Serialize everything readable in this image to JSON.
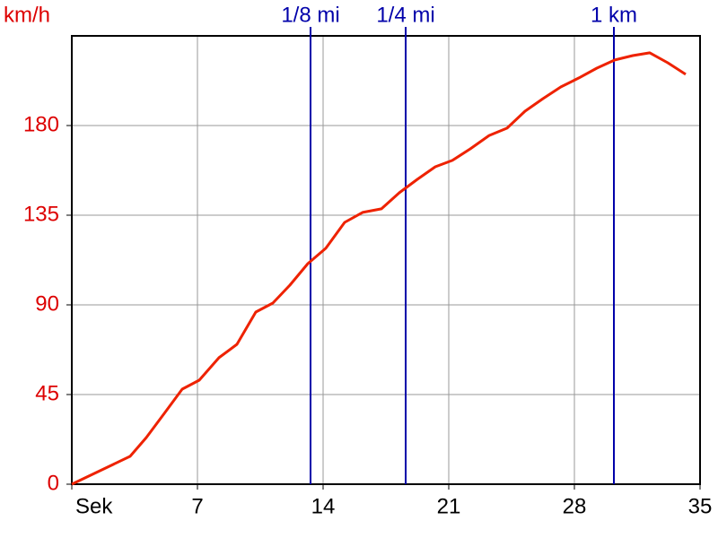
{
  "chart_data": {
    "type": "line",
    "y_label": "km/h",
    "x": [
      0,
      3.25,
      4.15,
      5.15,
      6.15,
      7.1,
      8.2,
      9.2,
      10.25,
      11.2,
      12.15,
      13.15,
      14.15,
      15.2,
      16.2,
      17.25,
      18.25,
      19.25,
      20.25,
      21.2,
      22.2,
      23.25,
      24.25,
      25.25,
      26.25,
      27.25,
      28.25,
      29.25,
      30.25,
      31.25,
      32.2,
      33.2,
      34.2
    ],
    "series": [
      {
        "color": "#ee2200",
        "values": [
          0,
          14,
          23.4,
          35.5,
          47.7,
          52.2,
          63.5,
          70.2,
          86.4,
          90.9,
          99.9,
          110.7,
          118.4,
          131.4,
          136.4,
          138.2,
          146.3,
          153,
          159.3,
          162.5,
          168.3,
          175,
          178.7,
          187.2,
          193.5,
          199.4,
          203.9,
          208.8,
          212.9,
          215.1,
          216.5,
          211.5,
          205.7
        ]
      }
    ],
    "xlim": [
      0,
      35
    ],
    "xticks": [
      {
        "value": 0,
        "label": "Sek"
      },
      7,
      14,
      21,
      28,
      35
    ],
    "ylim": [
      0,
      225
    ],
    "yticks": [
      0,
      45,
      90,
      135,
      180
    ],
    "grid": true,
    "markers": [
      {
        "x": 13.3,
        "label": "1/8 mi",
        "color": "#0000aa"
      },
      {
        "x": 18.6,
        "label": "1/4 mi",
        "color": "#0000aa"
      },
      {
        "x": 30.2,
        "label": "1 km",
        "color": "#0000aa"
      }
    ]
  }
}
